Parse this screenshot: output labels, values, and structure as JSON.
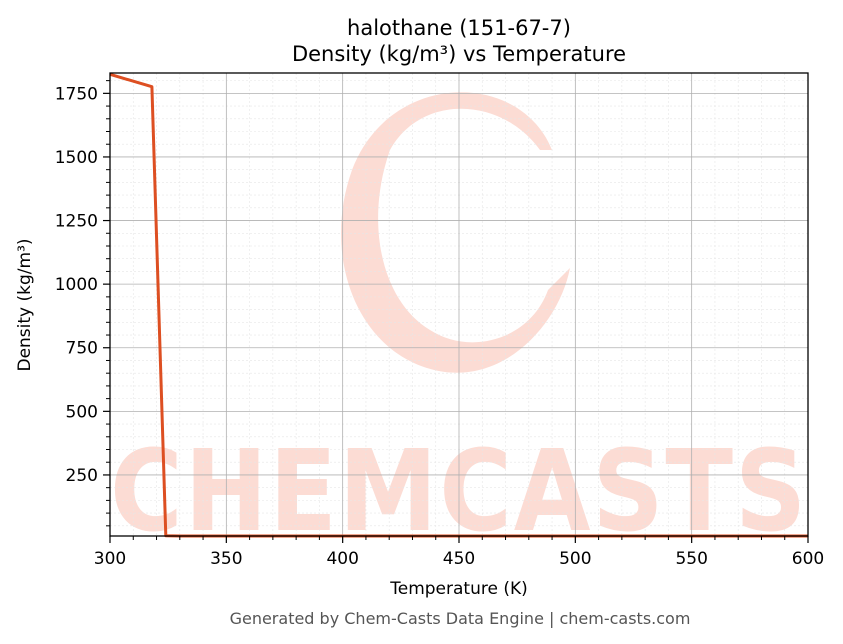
{
  "chart_data": {
    "type": "line",
    "title": "halothane (151-67-7)",
    "subtitle": "Density (kg/m³) vs Temperature",
    "xlabel": "Temperature (K)",
    "ylabel": "Density (kg/m³)",
    "xlim": [
      300,
      600
    ],
    "ylim": [
      10,
      1830
    ],
    "x_ticks": [
      300,
      350,
      400,
      450,
      500,
      550,
      600
    ],
    "y_ticks": [
      250,
      500,
      750,
      1000,
      1250,
      1500,
      1750
    ],
    "grid": true,
    "legend": "none",
    "series": [
      {
        "color": "#dd4f22",
        "x": [
          300,
          318,
          324,
          330,
          400,
          500,
          600
        ],
        "y": [
          1825,
          1776,
          11,
          10,
          10,
          10,
          10
        ]
      }
    ]
  },
  "watermark": {
    "text": "CHEMCASTS",
    "color": "#fcdcd4"
  },
  "footer": "Generated by Chem-Casts Data Engine | chem-casts.com"
}
